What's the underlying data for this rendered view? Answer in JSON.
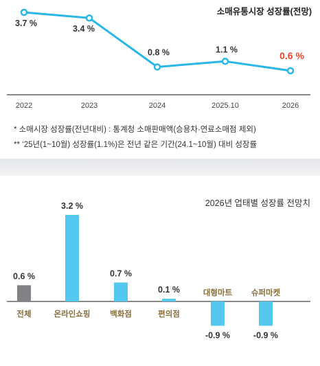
{
  "chart_data": [
    {
      "type": "line",
      "title": "소매유통시장 성장률(전망)",
      "x": [
        "2022",
        "2023",
        "2024",
        "2025.10",
        "2026"
      ],
      "values": [
        3.7,
        3.4,
        0.8,
        1.1,
        0.6
      ],
      "value_labels": [
        "3.7 %",
        "3.4 %",
        "0.8 %",
        "1.1 %",
        "0.6 %"
      ],
      "ylim": [
        0,
        4
      ],
      "grid": false,
      "line_color": "#29b6e8",
      "highlight_color": "#e8472c",
      "highlight_index": 4
    },
    {
      "type": "bar",
      "title": "2026년 업태별 성장률 전망치",
      "categories": [
        "전체",
        "온라인쇼핑",
        "백화점",
        "편의점",
        "대형마트",
        "슈퍼마켓"
      ],
      "values": [
        0.6,
        3.2,
        0.7,
        0.1,
        -0.9,
        -0.9
      ],
      "value_labels": [
        "0.6 %",
        "3.2 %",
        "0.7 %",
        "0.1 %",
        "-0.9 %",
        "-0.9 %"
      ],
      "ylim": [
        -1.2,
        3.6
      ],
      "grid": false,
      "bar_colors": [
        "#808285",
        "#55c8f0",
        "#55c8f0",
        "#55c8f0",
        "#55c8f0",
        "#55c8f0"
      ],
      "label_color": "#8a6d3b"
    }
  ],
  "footnotes": [
    "* 소매시장 성장률(전년대비) : 통계청 소매판매액(승용차·연료소매점 제외)",
    "** ‘25년(1~10월) 성장률(1.1%)은 전년 같은 기간(24.1~10월) 대비 성장률"
  ]
}
